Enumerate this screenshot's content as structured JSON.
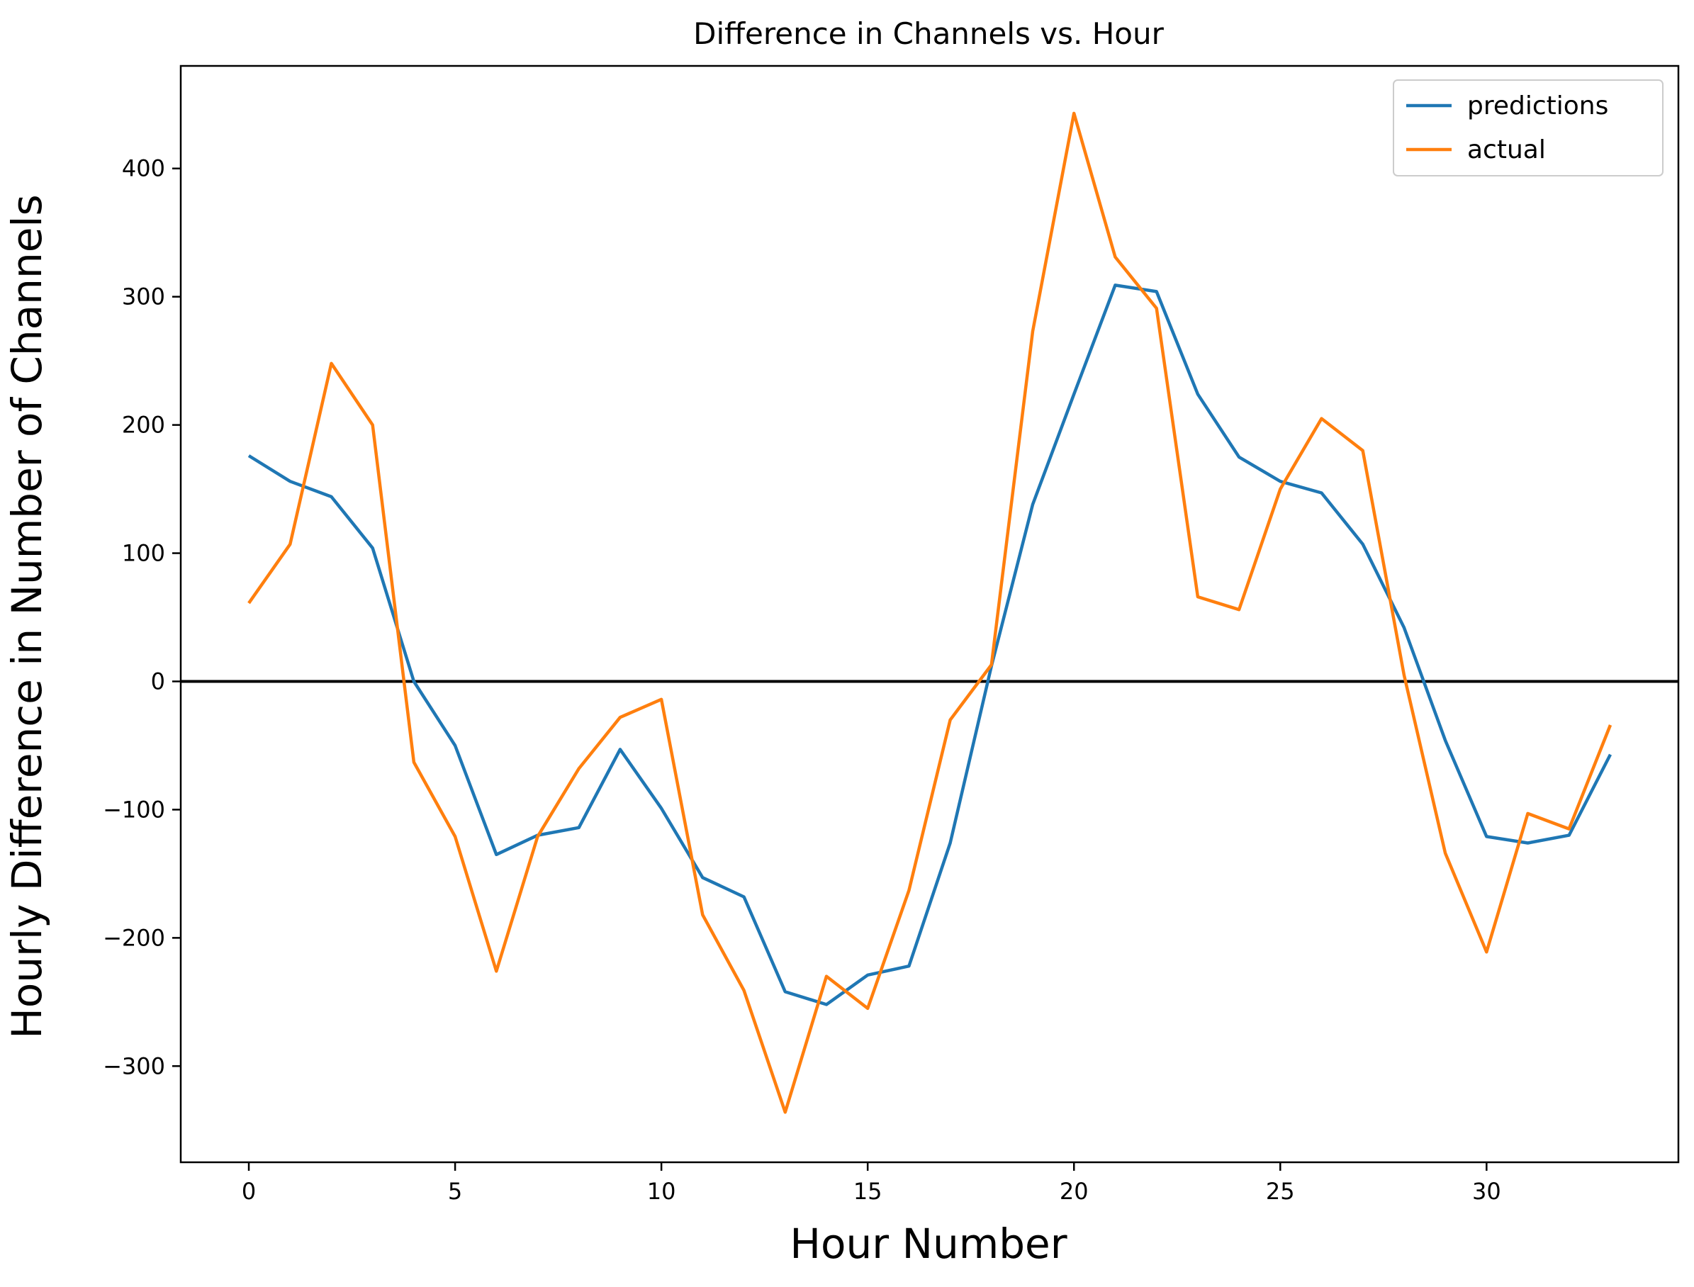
{
  "chart_data": {
    "type": "line",
    "title": "Difference in Channels vs. Hour",
    "xlabel": "Hour Number",
    "ylabel": "Hourly Difference in Number of Channels",
    "xlim": [
      -1.65,
      34.65
    ],
    "ylim": [
      -375,
      480
    ],
    "xticks": [
      0,
      5,
      10,
      15,
      20,
      25,
      30
    ],
    "yticks": [
      -300,
      -200,
      -100,
      0,
      100,
      200,
      300,
      400
    ],
    "x": [
      0,
      1,
      2,
      3,
      4,
      5,
      6,
      7,
      8,
      9,
      10,
      11,
      12,
      13,
      14,
      15,
      16,
      17,
      18,
      19,
      20,
      21,
      22,
      23,
      24,
      25,
      26,
      27,
      28,
      29,
      30,
      31,
      32,
      33
    ],
    "series": [
      {
        "name": "predictions",
        "color": "#1f77b4",
        "values": [
          176,
          156,
          144,
          104,
          0,
          -50,
          -135,
          -120,
          -114,
          -53,
          -99,
          -153,
          -168,
          -242,
          -252,
          -229,
          -222,
          -126,
          12,
          138,
          224,
          309,
          304,
          224,
          175,
          156,
          147,
          107,
          42,
          -46,
          -121,
          -126,
          -120,
          -57
        ]
      },
      {
        "name": "actual",
        "color": "#ff7f0e",
        "values": [
          61,
          107,
          248,
          200,
          -63,
          -121,
          -226,
          -121,
          -68,
          -28,
          -14,
          -182,
          -241,
          -336,
          -230,
          -255,
          -163,
          -30,
          13,
          273,
          443,
          331,
          291,
          66,
          56,
          150,
          205,
          180,
          5,
          -134,
          -211,
          -103,
          -115,
          -34
        ]
      }
    ],
    "hline": 0,
    "legend": "top-right",
    "grid": false
  }
}
